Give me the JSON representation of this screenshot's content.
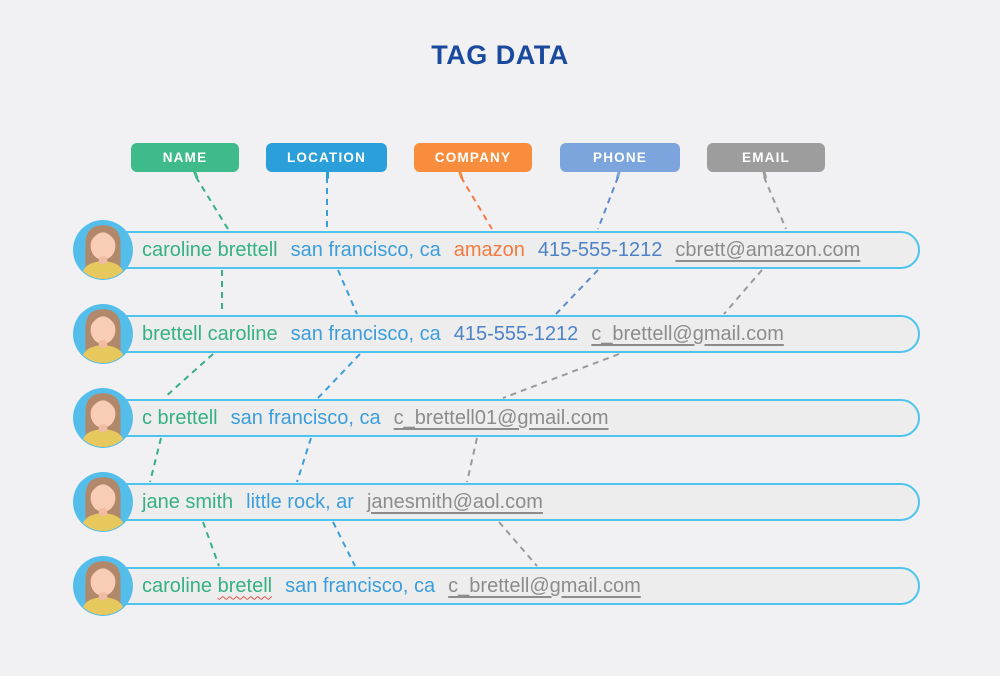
{
  "title": "TAG DATA",
  "colors": {
    "page_bg": "#f1f0f2",
    "title": "#1a4a9d",
    "text_name": "#35b184",
    "text_location": "#3b9edb",
    "text_company": "#f47b40",
    "text_phone": "#4e82c6",
    "text_email": "#8c8c8c",
    "row_border": "#4ec3ee",
    "row_bg": "#ededee",
    "spellcheck": "#e2574c",
    "avatar_bg": "#55bde9",
    "avatar_hair": "#b1886a",
    "avatar_skin": "#f9ccb6",
    "avatar_shirt": "#e6c85c"
  },
  "avatar_icon": "woman-avatar",
  "tags": [
    {
      "label": "NAME",
      "color": "#3fba8b"
    },
    {
      "label": "LOCATION",
      "color": "#2b9fd9"
    },
    {
      "label": "COMPANY",
      "color": "#f78d3d"
    },
    {
      "label": "PHONE",
      "color": "#7ba5dc"
    },
    {
      "label": "EMAIL",
      "color": "#9d9d9d"
    }
  ],
  "rows": [
    {
      "fields": [
        {
          "type": "name",
          "text": "caroline brettell"
        },
        {
          "type": "location",
          "text": "san francisco, ca"
        },
        {
          "type": "company",
          "text": "amazon"
        },
        {
          "type": "phone",
          "text": "415-555-1212"
        },
        {
          "type": "email",
          "text": "cbrett@amazon.com"
        }
      ]
    },
    {
      "fields": [
        {
          "type": "name",
          "text": "brettell caroline"
        },
        {
          "type": "location",
          "text": "san francisco, ca"
        },
        {
          "type": "phone",
          "text": "415-555-1212"
        },
        {
          "type": "email",
          "text": "c_brettell@gmail.com"
        }
      ]
    },
    {
      "fields": [
        {
          "type": "name",
          "text": "c brettell"
        },
        {
          "type": "location",
          "text": "san francisco, ca"
        },
        {
          "type": "email",
          "text": "c_brettell01@gmail.com"
        }
      ]
    },
    {
      "fields": [
        {
          "type": "name",
          "text": "jane smith"
        },
        {
          "type": "location",
          "text": "little rock, ar"
        },
        {
          "type": "email",
          "text": "janesmith@aol.com"
        }
      ]
    },
    {
      "fields": [
        {
          "type": "name",
          "parts": [
            {
              "text": "caroline "
            },
            {
              "text": "bretell",
              "misspelled": true
            }
          ]
        },
        {
          "type": "location",
          "text": "san francisco, ca"
        },
        {
          "type": "email",
          "text": "c_brettell@gmail.com"
        }
      ]
    }
  ]
}
